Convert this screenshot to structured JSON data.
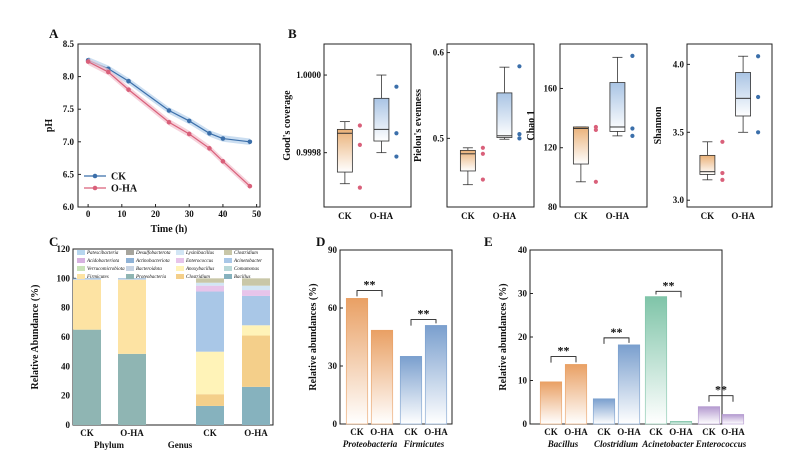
{
  "figure": {
    "panel_labels": [
      "A",
      "B",
      "C",
      "D",
      "E"
    ],
    "watermark": ""
  },
  "chart_data": [
    {
      "panel": "A",
      "type": "line",
      "xlabel": "Time (h)",
      "ylabel": "pH",
      "xlim": [
        -3,
        51
      ],
      "ylim": [
        6.0,
        8.5
      ],
      "xticks": [
        0,
        10,
        20,
        30,
        40,
        50
      ],
      "yticks": [
        6.0,
        6.5,
        7.0,
        7.5,
        8.0,
        8.5
      ],
      "x": [
        0,
        6,
        12,
        24,
        30,
        36,
        40,
        48
      ],
      "series": [
        {
          "name": "CK",
          "color": "#3b6faa",
          "band": "#b9d3ec",
          "values": [
            8.25,
            8.12,
            7.93,
            7.48,
            7.32,
            7.13,
            7.05,
            7.0
          ]
        },
        {
          "name": "O-HA",
          "color": "#d9607a",
          "band": "#f3c3cf",
          "values": [
            8.23,
            8.07,
            7.8,
            7.3,
            7.12,
            6.9,
            6.7,
            6.32
          ]
        }
      ],
      "legend_position": "bottom-left"
    },
    {
      "panel": "B",
      "type": "box",
      "subplots": [
        {
          "ylabel": "Good's coverage",
          "ylim": [
            0.99966,
            1.00008
          ],
          "yticks": [
            0.9998,
            1.0
          ],
          "groups": [
            "CK",
            "O-HA"
          ],
          "boxes": [
            {
              "min": 0.99972,
              "q1": 0.99975,
              "median": 0.99985,
              "q3": 0.99986,
              "max": 0.99988,
              "points": [
                0.99987,
                0.99982,
                0.99971
              ]
            },
            {
              "min": 0.9998,
              "q1": 0.99983,
              "median": 0.99986,
              "q3": 0.99994,
              "max": 1.0,
              "points": [
                0.99997,
                0.99985,
                0.99979
              ]
            }
          ]
        },
        {
          "ylabel": "Pielou's evenness",
          "ylim": [
            0.42,
            0.61
          ],
          "yticks": [
            0.5,
            0.6
          ],
          "groups": [
            "CK",
            "O-HA"
          ],
          "boxes": [
            {
              "min": 0.446,
              "q1": 0.462,
              "median": 0.482,
              "q3": 0.486,
              "max": 0.489,
              "points": [
                0.489,
                0.482,
                0.452
              ]
            },
            {
              "min": 0.499,
              "q1": 0.501,
              "median": 0.503,
              "q3": 0.553,
              "max": 0.583,
              "points": [
                0.584,
                0.505,
                0.5
              ]
            }
          ]
        },
        {
          "ylabel": "Chao 1",
          "ylim": [
            80,
            190
          ],
          "yticks": [
            80,
            120,
            160
          ],
          "groups": [
            "CK",
            "O-HA"
          ],
          "boxes": [
            {
              "min": 97,
              "q1": 109,
              "median": 133,
              "q3": 134,
              "max": 134,
              "points": [
                134,
                132,
                97
              ]
            },
            {
              "min": 128,
              "q1": 131,
              "median": 134,
              "q3": 164,
              "max": 181,
              "points": [
                182,
                133,
                128
              ]
            }
          ]
        },
        {
          "ylabel": "Shannon",
          "ylim": [
            2.95,
            4.15
          ],
          "yticks": [
            3.0,
            3.5,
            4.0
          ],
          "groups": [
            "CK",
            "O-HA"
          ],
          "boxes": [
            {
              "min": 3.15,
              "q1": 3.19,
              "median": 3.21,
              "q3": 3.33,
              "max": 3.43,
              "points": [
                3.43,
                3.2,
                3.15
              ]
            },
            {
              "min": 3.5,
              "q1": 3.62,
              "median": 3.75,
              "q3": 3.94,
              "max": 4.06,
              "points": [
                4.06,
                3.76,
                3.5
              ]
            }
          ]
        }
      ]
    },
    {
      "panel": "C",
      "type": "bar",
      "stacked": true,
      "ylabel": "Relative Abundance (%)",
      "ylim": [
        0,
        120
      ],
      "yticks": [
        0,
        20,
        40,
        60,
        80,
        100,
        120
      ],
      "categories": [
        "CK",
        "O-HA",
        "CK",
        "O-HA"
      ],
      "group_labels": [
        "Phylum",
        "Genus"
      ],
      "legend": [
        {
          "name": "Patescibacteria",
          "color": "#b7d6ef"
        },
        {
          "name": "Desulfobacterota",
          "color": "#a7a59d"
        },
        {
          "name": "Lysinibacillus",
          "color": "#d2e6f5"
        },
        {
          "name": "Clostridium",
          "color": "#c9c7a8"
        },
        {
          "name": "Acidobacteriota",
          "color": "#d7b2e0"
        },
        {
          "name": "Actinobacteriota",
          "color": "#8fb2d6"
        },
        {
          "name": "Enterococcus",
          "color": "#e7c4ea"
        },
        {
          "name": "Acinetobacter",
          "color": "#a9c7e7"
        },
        {
          "name": "Verrucomicrobiota",
          "color": "#c9e3b8"
        },
        {
          "name": "Bacteroidota",
          "color": "#c6d3e3"
        },
        {
          "name": "Anoxybacillus",
          "color": "#fff3b8"
        },
        {
          "name": "Comamonas",
          "color": "#b8d8d8"
        },
        {
          "name": "Firmicutes",
          "color": "#fde3a3"
        },
        {
          "name": "Proteobacteria",
          "color": "#8fb5b3"
        },
        {
          "name": "Clostridium",
          "color": "#f4cf8a"
        },
        {
          "name": "Bacillus",
          "color": "#86b2be"
        }
      ],
      "stacks": [
        [
          {
            "c": "#8fb5b3",
            "v": 65
          },
          {
            "c": "#fde3a3",
            "v": 34
          },
          {
            "c": "#c6d3e3",
            "v": 0.5
          },
          {
            "c": "#8fb2d6",
            "v": 0.5
          }
        ],
        [
          {
            "c": "#8fb5b3",
            "v": 48.5
          },
          {
            "c": "#fde3a3",
            "v": 50.5
          },
          {
            "c": "#c6d3e3",
            "v": 0.5
          },
          {
            "c": "#8fb2d6",
            "v": 0.5
          }
        ],
        [
          {
            "c": "#86b2be",
            "v": 13
          },
          {
            "c": "#f4cf8a",
            "v": 8
          },
          {
            "c": "#fff3b8",
            "v": 29
          },
          {
            "c": "#a9c7e7",
            "v": 41
          },
          {
            "c": "#e7c4ea",
            "v": 4
          },
          {
            "c": "#d2e6f5",
            "v": 2
          },
          {
            "c": "#c9c7a8",
            "v": 3
          }
        ],
        [
          {
            "c": "#86b2be",
            "v": 26
          },
          {
            "c": "#f4cf8a",
            "v": 35
          },
          {
            "c": "#fff3b8",
            "v": 7
          },
          {
            "c": "#a9c7e7",
            "v": 20
          },
          {
            "c": "#e7c4ea",
            "v": 4
          },
          {
            "c": "#d2e6f5",
            "v": 3
          },
          {
            "c": "#c9c7a8",
            "v": 5
          }
        ]
      ]
    },
    {
      "panel": "D",
      "type": "bar",
      "ylabel": "Relative abundances (%)",
      "ylim": [
        0,
        90
      ],
      "yticks": [
        0,
        30,
        60,
        90
      ],
      "groups": [
        "Proteobacteria",
        "Firmicutes"
      ],
      "categories": [
        "CK",
        "O-HA",
        "CK",
        "O-HA"
      ],
      "values": [
        65,
        48.5,
        35,
        51
      ],
      "colors": [
        "#e9a064",
        "#e9a064",
        "#7a9fce",
        "#7a9fce"
      ],
      "significance": [
        "**",
        "**"
      ]
    },
    {
      "panel": "E",
      "type": "bar",
      "ylabel": "Relative abundances (%)",
      "ylim": [
        0,
        40
      ],
      "yticks": [
        0,
        10,
        20,
        30,
        40
      ],
      "groups": [
        "Bacillus",
        "Clostridium",
        "Acinetobacter",
        "Enterococcus"
      ],
      "categories": [
        "CK",
        "O-HA",
        "CK",
        "O-HA",
        "CK",
        "O-HA",
        "CK",
        "O-HA"
      ],
      "values": [
        9.7,
        13.7,
        5.8,
        18.2,
        29.3,
        0.6,
        4.0,
        2.2
      ],
      "colors": [
        "#e9a064",
        "#e9a064",
        "#7a9fce",
        "#7a9fce",
        "#7fc4a8",
        "#7fc4a8",
        "#b49ad0",
        "#b49ad0"
      ],
      "significance": [
        "**",
        "**",
        "**",
        "**"
      ]
    }
  ]
}
